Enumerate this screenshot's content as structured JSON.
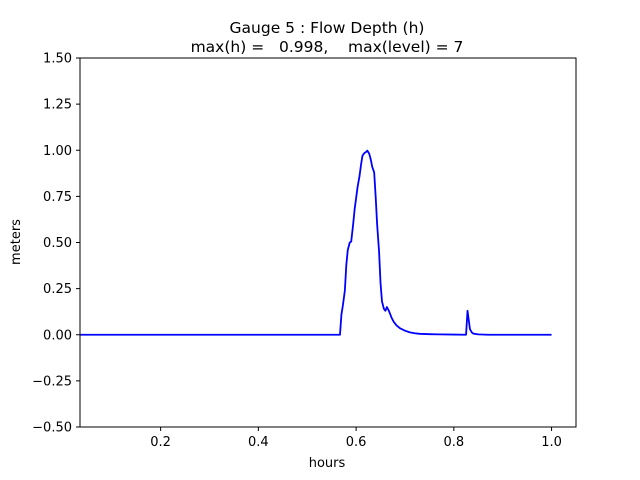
{
  "chart_data": {
    "type": "line",
    "title": "Gauge 5 : Flow Depth (h)",
    "subtitle": "max(h) =   0.998,    max(level) = 7",
    "xlabel": "hours",
    "ylabel": "meters",
    "xlim": [
      0.035,
      1.05
    ],
    "ylim": [
      -0.5,
      1.5
    ],
    "xticks": [
      0.2,
      0.4,
      0.6,
      0.8,
      1.0
    ],
    "xtick_labels": [
      "0.2",
      "0.4",
      "0.6",
      "0.8",
      "1.0"
    ],
    "yticks": [
      -0.5,
      -0.25,
      0.0,
      0.25,
      0.5,
      0.75,
      1.0,
      1.25,
      1.5
    ],
    "ytick_labels": [
      "−0.50",
      "−0.25",
      "0.00",
      "0.25",
      "0.50",
      "0.75",
      "1.00",
      "1.25",
      "1.50"
    ],
    "grid": false,
    "series": [
      {
        "color": "#0000ff",
        "x": [
          0.035,
          0.2,
          0.4,
          0.5,
          0.567,
          0.57,
          0.573,
          0.577,
          0.58,
          0.583,
          0.587,
          0.59,
          0.594,
          0.597,
          0.6,
          0.603,
          0.607,
          0.61,
          0.613,
          0.617,
          0.62,
          0.623,
          0.627,
          0.63,
          0.633,
          0.637,
          0.64,
          0.643,
          0.647,
          0.65,
          0.653,
          0.657,
          0.66,
          0.663,
          0.667,
          0.67,
          0.673,
          0.677,
          0.68,
          0.683,
          0.69,
          0.7,
          0.71,
          0.72,
          0.73,
          0.75,
          0.77,
          0.8,
          0.825,
          0.828,
          0.83,
          0.833,
          0.837,
          0.84,
          0.85,
          0.87,
          0.9,
          0.95,
          1.0
        ],
        "y": [
          0.0,
          0.0,
          0.0,
          0.0,
          0.0,
          0.11,
          0.16,
          0.24,
          0.38,
          0.46,
          0.5,
          0.505,
          0.6,
          0.68,
          0.74,
          0.8,
          0.86,
          0.92,
          0.97,
          0.985,
          0.99,
          0.998,
          0.98,
          0.95,
          0.91,
          0.88,
          0.75,
          0.6,
          0.45,
          0.28,
          0.18,
          0.14,
          0.13,
          0.15,
          0.13,
          0.11,
          0.09,
          0.07,
          0.06,
          0.05,
          0.035,
          0.022,
          0.013,
          0.008,
          0.005,
          0.003,
          0.002,
          0.001,
          0.0,
          0.13,
          0.09,
          0.03,
          0.012,
          0.006,
          0.002,
          0.0,
          0.0,
          0.0,
          0.0
        ]
      }
    ]
  }
}
